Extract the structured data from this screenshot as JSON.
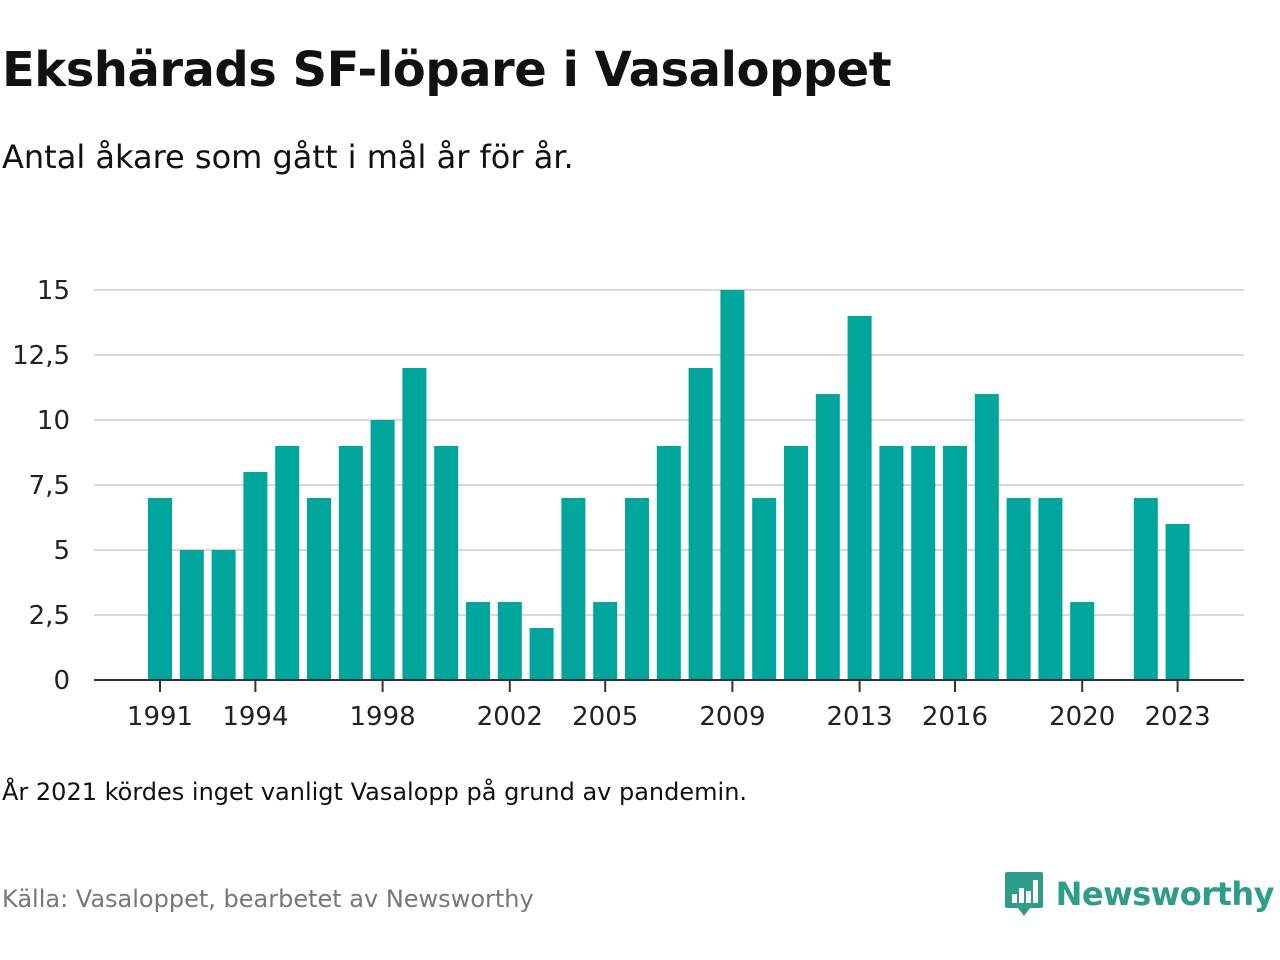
{
  "header": {
    "title": "Ekshärads SF-löpare i Vasaloppet",
    "subtitle": "Antal åkare som gått i mål år för år."
  },
  "footer": {
    "note": "År 2021 kördes inget vanligt Vasalopp på grund av pandemin.",
    "source": "Källa: Vasaloppet, bearbetet av Newsworthy",
    "logo_text": "Newsworthy",
    "logo_icon": "newsworthy-chart-bubble-icon"
  },
  "colors": {
    "bar": "#00a59b",
    "grid": "#d9d9d9",
    "axis": "#333333",
    "logo": "#2d9c89"
  },
  "chart_data": {
    "type": "bar",
    "categories": [
      "1991",
      "1992",
      "1993",
      "1994",
      "1995",
      "1996",
      "1997",
      "1998",
      "1999",
      "2000",
      "2001",
      "2002",
      "2003",
      "2004",
      "2005",
      "2006",
      "2007",
      "2008",
      "2009",
      "2010",
      "2011",
      "2012",
      "2013",
      "2014",
      "2015",
      "2016",
      "2017",
      "2018",
      "2019",
      "2020",
      "2021",
      "2022",
      "2023"
    ],
    "values": [
      7,
      5,
      5,
      8,
      9,
      7,
      9,
      10,
      12,
      9,
      3,
      3,
      2,
      7,
      3,
      7,
      9,
      12,
      15,
      7,
      9,
      11,
      14,
      9,
      9,
      9,
      11,
      7,
      7,
      3,
      null,
      7,
      6
    ],
    "x_tick_labels": [
      "1991",
      "1994",
      "1998",
      "2002",
      "2005",
      "2009",
      "2013",
      "2016",
      "2020",
      "2023"
    ],
    "y_ticks": [
      0,
      2.5,
      5,
      7.5,
      10,
      12.5,
      15
    ],
    "y_tick_labels": [
      "0",
      "2,5",
      "5",
      "7,5",
      "10",
      "12,5",
      "15"
    ],
    "ylim": [
      0,
      15
    ],
    "grid": true,
    "xlabel": "",
    "ylabel": ""
  }
}
